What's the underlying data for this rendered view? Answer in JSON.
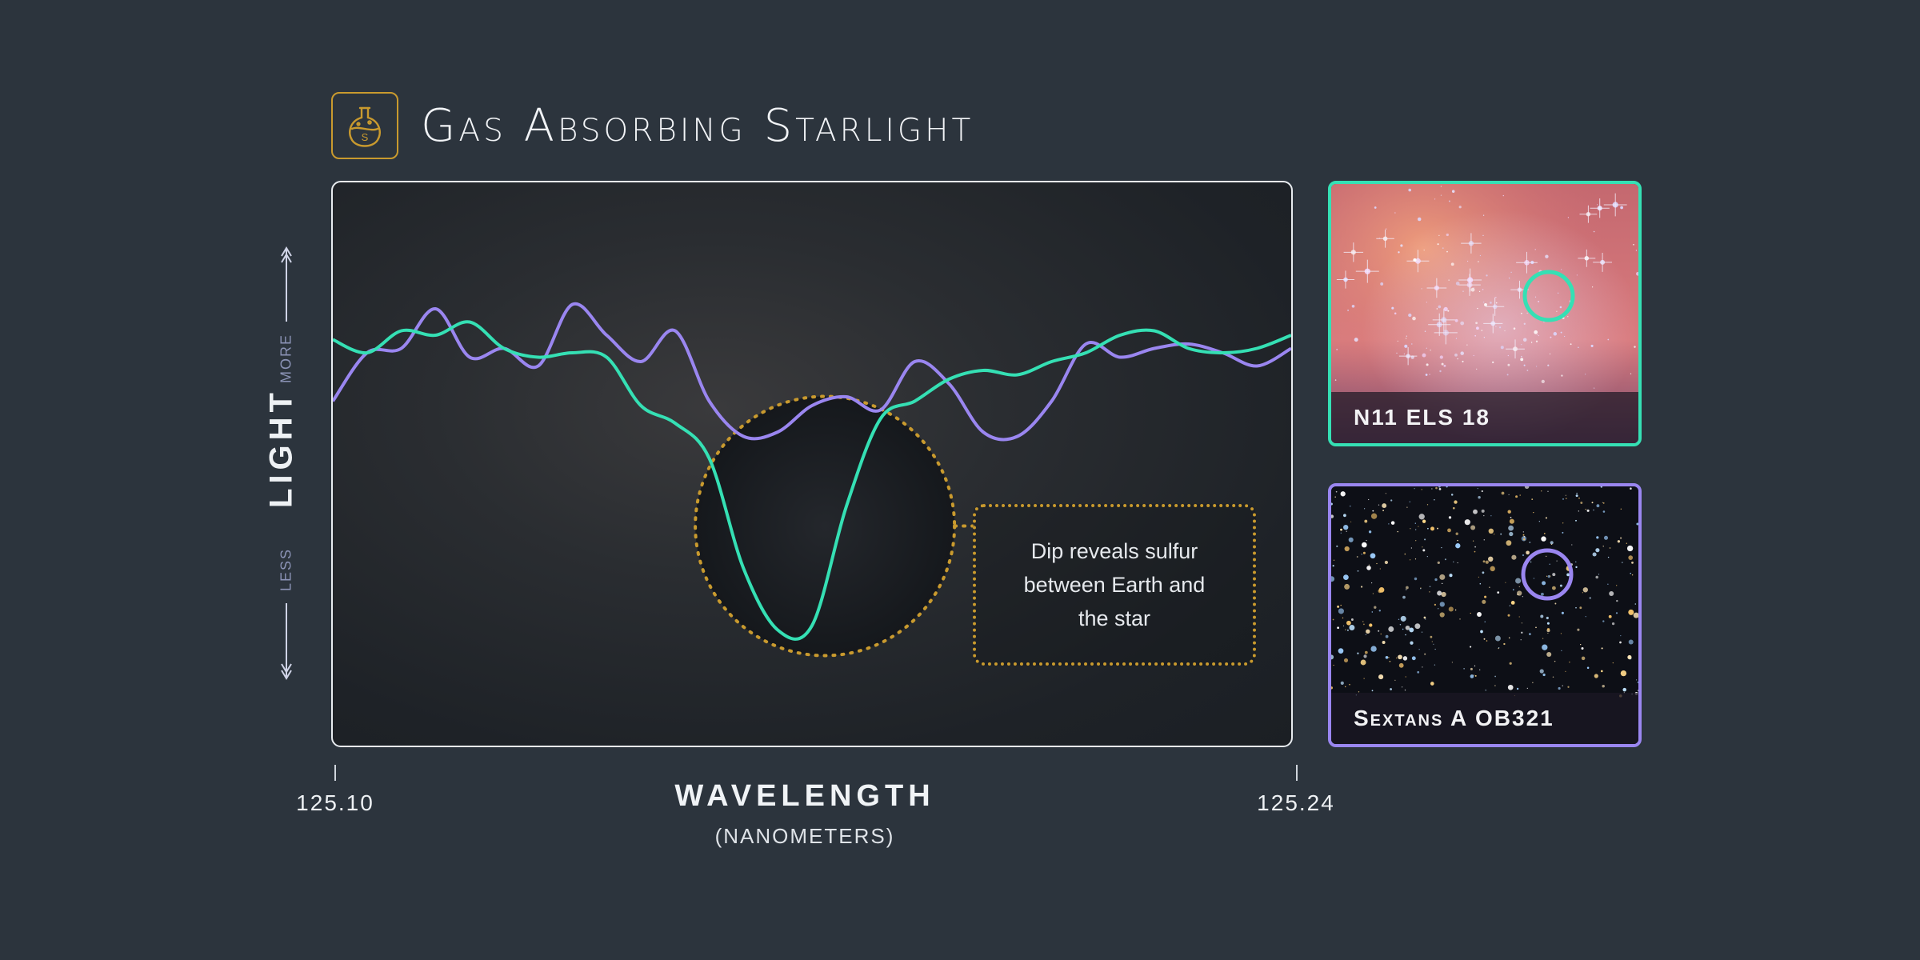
{
  "title": "Gas Absorbing Starlight",
  "icon_letter": "S",
  "callout_text": "Dip reveals sulfur between Earth and the star",
  "colors": {
    "background": "#2c343d",
    "star1": "#35e0b4",
    "star2": "#9a86f0",
    "accent": "#c99a2e",
    "frame": "#e8ecf0"
  },
  "chart_data": {
    "type": "line",
    "title": "Gas Absorbing Starlight",
    "xlabel": "WAVELENGTH",
    "xunit": "(NANOMETERS)",
    "ylabel": "LIGHT",
    "y_high_label": "MORE",
    "y_low_label": "LESS",
    "x_tick_labels": [
      "125.10",
      "125.24"
    ],
    "xlim": [
      125.1,
      125.24
    ],
    "ylim": [
      0,
      1
    ],
    "grid": false,
    "x": [
      125.1,
      125.105,
      125.11,
      125.115,
      125.12,
      125.125,
      125.13,
      125.135,
      125.14,
      125.145,
      125.15,
      125.155,
      125.16,
      125.165,
      125.17,
      125.175,
      125.18,
      125.185,
      125.19,
      125.195,
      125.2,
      125.205,
      125.21,
      125.215,
      125.22,
      125.225,
      125.23,
      125.235,
      125.24
    ],
    "series": [
      {
        "name": "N11 ELS 18",
        "color": "#35e0b4",
        "values": [
          0.77,
          0.74,
          0.79,
          0.78,
          0.81,
          0.75,
          0.73,
          0.74,
          0.73,
          0.62,
          0.58,
          0.5,
          0.25,
          0.11,
          0.12,
          0.39,
          0.59,
          0.63,
          0.68,
          0.7,
          0.69,
          0.72,
          0.74,
          0.78,
          0.79,
          0.75,
          0.74,
          0.75,
          0.78
        ]
      },
      {
        "name": "Sextans A OB321",
        "color": "#9a86f0",
        "values": [
          0.63,
          0.74,
          0.75,
          0.84,
          0.73,
          0.75,
          0.71,
          0.85,
          0.78,
          0.72,
          0.79,
          0.63,
          0.55,
          0.56,
          0.62,
          0.64,
          0.61,
          0.72,
          0.67,
          0.56,
          0.55,
          0.63,
          0.76,
          0.73,
          0.75,
          0.76,
          0.74,
          0.71,
          0.75
        ]
      }
    ],
    "annotation": {
      "x": 125.172,
      "y": 0.11,
      "text": "Dip reveals sulfur between Earth and the star"
    }
  },
  "thumbnails": [
    {
      "caption": "N11 ELS 18",
      "color": "#35e0b4"
    },
    {
      "caption": "Sextans A OB321",
      "color": "#9a86f0"
    }
  ]
}
